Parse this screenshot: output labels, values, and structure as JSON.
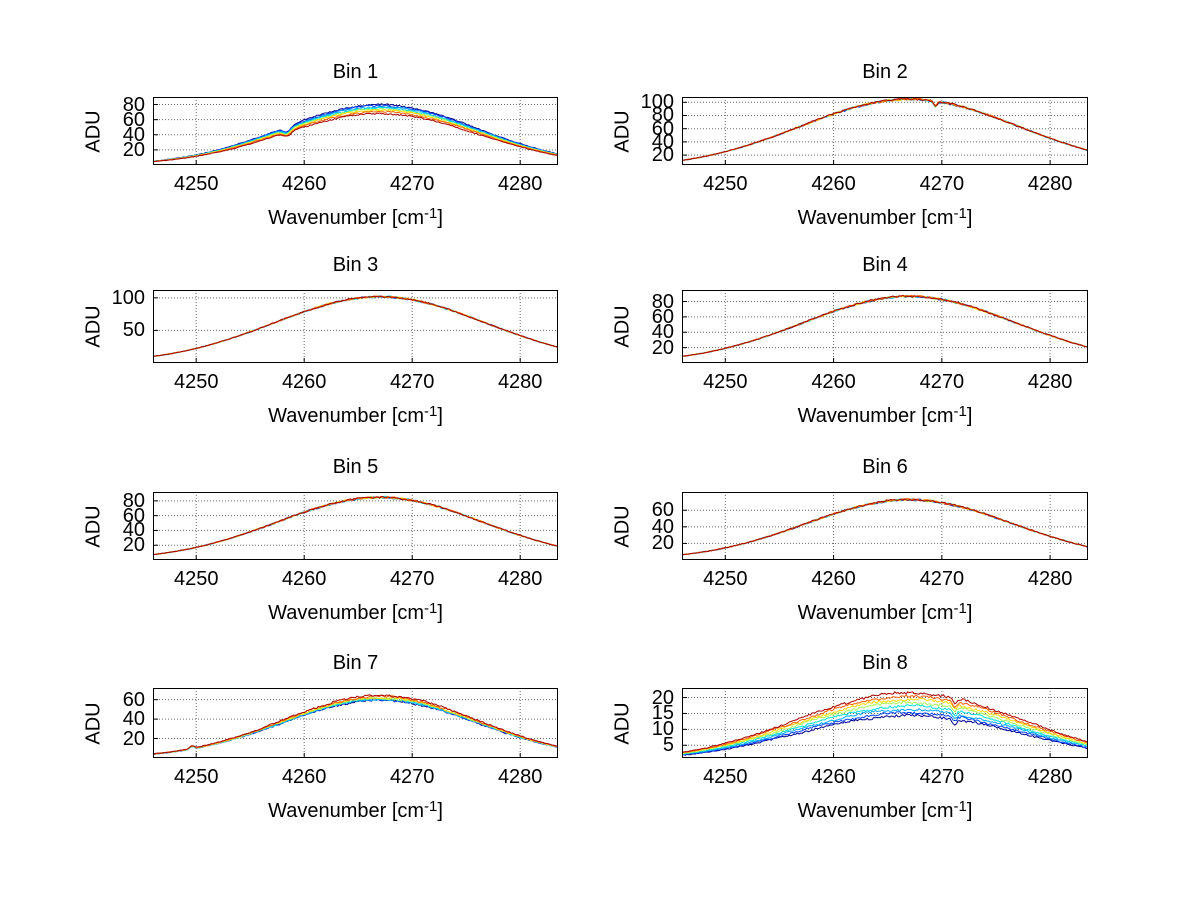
{
  "figure": {
    "background_color": "#ffffff",
    "grid_rows": 4,
    "grid_cols": 2
  },
  "axis_labels": {
    "y": "ADU",
    "x_main": "Wavenumber [cm",
    "x_sup": "-1",
    "x_close": "]"
  },
  "profile": {
    "x_start": 4246,
    "x_step": 1,
    "normalized_values": [
      0.0657,
      0.0846,
      0.1077,
      0.1353,
      0.168,
      0.206,
      0.2494,
      0.2982,
      0.3524,
      0.4111,
      0.4738,
      0.5395,
      0.6065,
      0.6737,
      0.7392,
      0.8007,
      0.8571,
      0.906,
      0.9459,
      0.9756,
      0.9938,
      1.0,
      0.9938,
      0.9756,
      0.9459,
      0.906,
      0.8571,
      0.8007,
      0.7392,
      0.6737,
      0.6065,
      0.5395,
      0.4738,
      0.4111,
      0.3524,
      0.2982,
      0.2494,
      0.206
    ]
  },
  "chart_data": [
    {
      "type": "line",
      "title": "Bin 1",
      "xlabel": "Wavenumber [cm^-1]",
      "ylabel": "ADU",
      "x_range": [
        4246,
        4283.5
      ],
      "x_ticks": [
        4250,
        4260,
        4270,
        4280
      ],
      "y_range": [
        0,
        90
      ],
      "y_ticks": [
        20,
        40,
        60,
        80
      ],
      "grid": true,
      "legend": "none",
      "colormap": "jet",
      "overlapping": false,
      "peak_x": 4267,
      "noise_amp": 0.9,
      "shape_power": 1.0,
      "series": [
        {
          "color": "#00008F",
          "peak_adu": 80.0
        },
        {
          "color": "#0040FF",
          "peak_adu": 78.5
        },
        {
          "color": "#00A8FF",
          "peak_adu": 77.0
        },
        {
          "color": "#00E0D8",
          "peak_adu": 75.5
        },
        {
          "color": "#A8F858",
          "peak_adu": 74.0
        },
        {
          "color": "#FFD800",
          "peak_adu": 72.5
        },
        {
          "color": "#FF6000",
          "peak_adu": 70.5
        },
        {
          "color": "#A80000",
          "peak_adu": 68.0
        }
      ],
      "features": [
        {
          "kind": "dip",
          "x": 4258.4,
          "width": 0.5,
          "depth_frac": 0.13
        }
      ]
    },
    {
      "type": "line",
      "title": "Bin 2",
      "xlabel": "Wavenumber [cm^-1]",
      "ylabel": "ADU",
      "x_range": [
        4246,
        4283.5
      ],
      "x_ticks": [
        4250,
        4260,
        4270,
        4280
      ],
      "y_range": [
        5,
        108
      ],
      "y_ticks": [
        20,
        40,
        60,
        80,
        100
      ],
      "grid": true,
      "legend": "none",
      "colormap": "jet",
      "overlapping": true,
      "peak_x": 4266,
      "noise_amp": 1.3,
      "shape_power": 0.8,
      "series": [
        {
          "color": "#00008F",
          "peak_adu": 104.6
        },
        {
          "color": "#0040FF",
          "peak_adu": 104.6
        },
        {
          "color": "#00A8FF",
          "peak_adu": 104.7
        },
        {
          "color": "#00E0D8",
          "peak_adu": 104.7
        },
        {
          "color": "#A8F858",
          "peak_adu": 104.8
        },
        {
          "color": "#FFD800",
          "peak_adu": 104.8
        },
        {
          "color": "#FF6000",
          "peak_adu": 104.9
        },
        {
          "color": "#A80000",
          "peak_adu": 105.0
        }
      ],
      "features": [
        {
          "kind": "dip",
          "x": 4269.4,
          "width": 0.22,
          "depth": 8
        }
      ]
    },
    {
      "type": "line",
      "title": "Bin 3",
      "xlabel": "Wavenumber [cm^-1]",
      "ylabel": "ADU",
      "x_range": [
        4246,
        4283.5
      ],
      "x_ticks": [
        4250,
        4260,
        4270,
        4280
      ],
      "y_range": [
        0,
        112
      ],
      "y_ticks": [
        50,
        100
      ],
      "grid": true,
      "legend": "none",
      "colormap": "jet",
      "overlapping": true,
      "peak_x": 4266,
      "noise_amp": 1.1,
      "shape_power": 0.85,
      "series": [
        {
          "color": "#00008F",
          "peak_adu": 101.6
        },
        {
          "color": "#0040FF",
          "peak_adu": 101.7
        },
        {
          "color": "#00A8FF",
          "peak_adu": 101.7
        },
        {
          "color": "#00E0D8",
          "peak_adu": 101.8
        },
        {
          "color": "#A8F858",
          "peak_adu": 101.8
        },
        {
          "color": "#FFD800",
          "peak_adu": 101.9
        },
        {
          "color": "#FF6000",
          "peak_adu": 101.9
        },
        {
          "color": "#A80000",
          "peak_adu": 102.0
        }
      ],
      "features": []
    },
    {
      "type": "line",
      "title": "Bin 4",
      "xlabel": "Wavenumber [cm^-1]",
      "ylabel": "ADU",
      "x_range": [
        4246,
        4283.5
      ],
      "x_ticks": [
        4250,
        4260,
        4270,
        4280
      ],
      "y_range": [
        0,
        95
      ],
      "y_ticks": [
        20,
        40,
        60,
        80
      ],
      "grid": true,
      "legend": "none",
      "colormap": "jet",
      "overlapping": true,
      "peak_x": 4267,
      "noise_amp": 1.1,
      "shape_power": 0.85,
      "series": [
        {
          "color": "#00008F",
          "peak_adu": 86.6
        },
        {
          "color": "#0040FF",
          "peak_adu": 86.7
        },
        {
          "color": "#00A8FF",
          "peak_adu": 86.7
        },
        {
          "color": "#00E0D8",
          "peak_adu": 86.8
        },
        {
          "color": "#A8F858",
          "peak_adu": 86.8
        },
        {
          "color": "#FFD800",
          "peak_adu": 86.9
        },
        {
          "color": "#FF6000",
          "peak_adu": 86.9
        },
        {
          "color": "#A80000",
          "peak_adu": 87.0
        }
      ],
      "features": []
    },
    {
      "type": "line",
      "title": "Bin 5",
      "xlabel": "Wavenumber [cm^-1]",
      "ylabel": "ADU",
      "x_range": [
        4246,
        4283.5
      ],
      "x_ticks": [
        4250,
        4260,
        4270,
        4280
      ],
      "y_range": [
        0,
        92
      ],
      "y_ticks": [
        20,
        40,
        60,
        80
      ],
      "grid": true,
      "legend": "none",
      "colormap": "jet",
      "overlapping": true,
      "peak_x": 4266,
      "noise_amp": 1.1,
      "shape_power": 0.9,
      "series": [
        {
          "color": "#00008F",
          "peak_adu": 84.6
        },
        {
          "color": "#0040FF",
          "peak_adu": 84.7
        },
        {
          "color": "#00A8FF",
          "peak_adu": 84.7
        },
        {
          "color": "#00E0D8",
          "peak_adu": 84.8
        },
        {
          "color": "#A8F858",
          "peak_adu": 84.8
        },
        {
          "color": "#FFD800",
          "peak_adu": 84.9
        },
        {
          "color": "#FF6000",
          "peak_adu": 84.9
        },
        {
          "color": "#A80000",
          "peak_adu": 85.0
        }
      ],
      "features": []
    },
    {
      "type": "line",
      "title": "Bin 6",
      "xlabel": "Wavenumber [cm^-1]",
      "ylabel": "ADU",
      "x_range": [
        4246,
        4283.5
      ],
      "x_ticks": [
        4250,
        4260,
        4270,
        4280
      ],
      "y_range": [
        0,
        82
      ],
      "y_ticks": [
        20,
        40,
        60
      ],
      "grid": true,
      "legend": "none",
      "colormap": "jet",
      "overlapping": true,
      "peak_x": 4267,
      "noise_amp": 1.0,
      "shape_power": 0.9,
      "series": [
        {
          "color": "#00008F",
          "peak_adu": 72.6
        },
        {
          "color": "#0040FF",
          "peak_adu": 72.7
        },
        {
          "color": "#00A8FF",
          "peak_adu": 72.7
        },
        {
          "color": "#00E0D8",
          "peak_adu": 72.8
        },
        {
          "color": "#A8F858",
          "peak_adu": 72.8
        },
        {
          "color": "#FFD800",
          "peak_adu": 72.9
        },
        {
          "color": "#FF6000",
          "peak_adu": 72.9
        },
        {
          "color": "#A80000",
          "peak_adu": 73.0
        }
      ],
      "features": []
    },
    {
      "type": "line",
      "title": "Bin 7",
      "xlabel": "Wavenumber [cm^-1]",
      "ylabel": "ADU",
      "x_range": [
        4246,
        4283.5
      ],
      "x_ticks": [
        4250,
        4260,
        4270,
        4280
      ],
      "y_range": [
        0,
        72
      ],
      "y_ticks": [
        20,
        40,
        60
      ],
      "grid": true,
      "legend": "none",
      "colormap": "jet",
      "overlapping": false,
      "peak_x": 4267,
      "noise_amp": 1.0,
      "shape_power": 1.0,
      "series": [
        {
          "color": "#00008F",
          "peak_adu": 59.5
        },
        {
          "color": "#0040FF",
          "peak_adu": 60.0
        },
        {
          "color": "#00A8FF",
          "peak_adu": 60.4
        },
        {
          "color": "#00E0D8",
          "peak_adu": 60.9
        },
        {
          "color": "#A8F858",
          "peak_adu": 61.5
        },
        {
          "color": "#FFD800",
          "peak_adu": 62.3
        },
        {
          "color": "#FF6000",
          "peak_adu": 63.3
        },
        {
          "color": "#A80000",
          "peak_adu": 64.5
        }
      ],
      "features": [
        {
          "kind": "bump",
          "x": 4249.6,
          "width": 0.3,
          "height": 2.5
        }
      ]
    },
    {
      "type": "line",
      "title": "Bin 8",
      "xlabel": "Wavenumber [cm^-1]",
      "ylabel": "ADU",
      "x_range": [
        4246,
        4283.5
      ],
      "x_ticks": [
        4250,
        4260,
        4270,
        4280
      ],
      "y_range": [
        1,
        23
      ],
      "y_ticks": [
        5,
        10,
        15,
        20
      ],
      "grid": true,
      "legend": "none",
      "colormap": "jet",
      "overlapping": false,
      "peak_x": 4266,
      "noise_amp": 0.4,
      "shape_power": 0.75,
      "series": [
        {
          "color": "#00008F",
          "peak_adu": 14.3
        },
        {
          "color": "#0040FF",
          "peak_adu": 15.2
        },
        {
          "color": "#00A8FF",
          "peak_adu": 16.2
        },
        {
          "color": "#00E0D8",
          "peak_adu": 17.3
        },
        {
          "color": "#A8F858",
          "peak_adu": 18.4
        },
        {
          "color": "#FFD800",
          "peak_adu": 19.4
        },
        {
          "color": "#FF6000",
          "peak_adu": 20.4
        },
        {
          "color": "#A80000",
          "peak_adu": 21.5
        }
      ],
      "features": [
        {
          "kind": "dip",
          "x": 4271.2,
          "width": 0.25,
          "depth": 1.6
        }
      ]
    }
  ]
}
